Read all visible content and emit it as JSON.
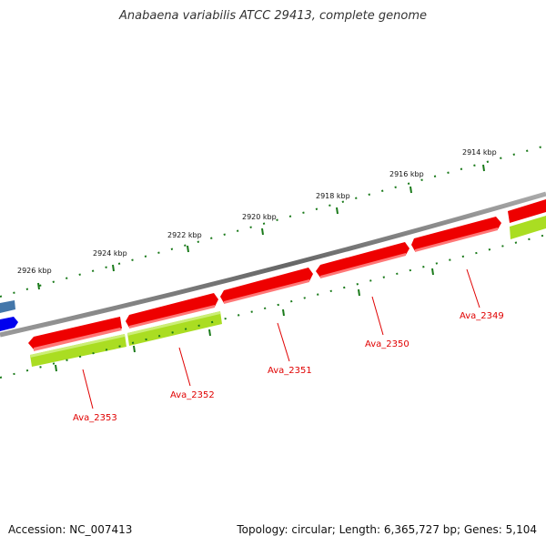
{
  "title": "Anabaena variabilis ATCC 29413, complete genome",
  "footer": {
    "accession": "Accession: NC_007413",
    "summary": "Topology: circular; Length: 6,365,727 bp; Genes: 5,104"
  },
  "scale_labels": [
    "2914 kbp",
    "2916 kbp",
    "2918 kbp",
    "2920 kbp",
    "2922 kbp",
    "2924 kbp",
    "2926 kbp"
  ],
  "genes": [
    {
      "name": "Ava_2349"
    },
    {
      "name": "Ava_2350"
    },
    {
      "name": "Ava_2351"
    },
    {
      "name": "Ava_2352"
    },
    {
      "name": "Ava_2353"
    }
  ],
  "colors": {
    "backbone": "#777777",
    "cds_forward": "#ee0000",
    "cds_shadow": "#ff7777",
    "gene_track": "#aadd22",
    "tick": "#1a7a1a",
    "label": "#e00000",
    "blue_feature": "#0000ee",
    "steel_feature": "#4477aa"
  }
}
